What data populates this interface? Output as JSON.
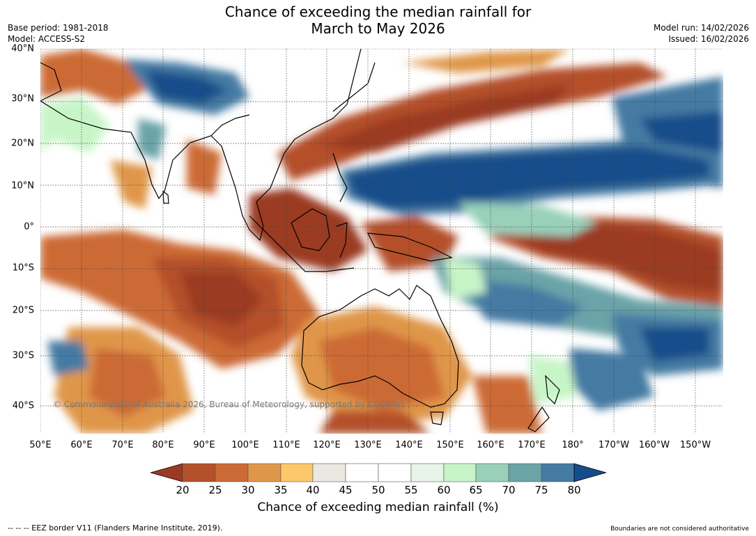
{
  "title_line1": "Chance of exceeding the median rainfall for",
  "title_line2": "March to May 2026",
  "meta_left": {
    "base_period": "Base period: 1981-2018",
    "model": "Model: ACCESS-S2"
  },
  "meta_right": {
    "model_run": "Model run: 14/02/2026",
    "issued": "Issued: 16/02/2026"
  },
  "copyright": "© Commonwealth of Australia 2026, Bureau of Meteorology, supported by COSPPac",
  "lon_ticks": [
    "50°E",
    "60°E",
    "70°E",
    "80°E",
    "90°E",
    "100°E",
    "110°E",
    "120°E",
    "130°E",
    "140°E",
    "150°E",
    "160°E",
    "170°E",
    "180°",
    "170°W",
    "160°W",
    "150°W"
  ],
  "lat_ticks": [
    "40°N",
    "30°N",
    "20°N",
    "10°N",
    "0°",
    "10°S",
    "20°S",
    "30°S",
    "40°S"
  ],
  "colorbar": {
    "labels": [
      "20",
      "25",
      "30",
      "35",
      "40",
      "45",
      "50",
      "55",
      "60",
      "65",
      "70",
      "75",
      "80"
    ],
    "colors": [
      "#9b3a22",
      "#b4502a",
      "#cc6a35",
      "#e0964a",
      "#fcc86a",
      "#ebe8e2",
      "#ffffff",
      "#ffffff",
      "#e8f4e8",
      "#c8f5c8",
      "#98d0ba",
      "#6aa3a8",
      "#457aa3",
      "#154d8a"
    ],
    "title": "Chance of exceeding median rainfall (%)"
  },
  "footer_left": "--  --  -- EEZ border V11 (Flanders Marine Institute, 2019).",
  "footer_right": "Boundaries are not considered authoritative",
  "chart_data": {
    "type": "heatmap",
    "title": "Chance of exceeding the median rainfall for March to May 2026",
    "colorbar_label": "Chance of exceeding median rainfall (%)",
    "colorbar_range": [
      20,
      80
    ],
    "colorbar_step": 5,
    "lon_ticks": [
      "50°E",
      "60°E",
      "70°E",
      "80°E",
      "90°E",
      "100°E",
      "110°E",
      "120°E",
      "130°E",
      "140°E",
      "150°E",
      "160°E",
      "170°E",
      "180°",
      "170°W",
      "160°W",
      "150°W"
    ],
    "lat_ticks": [
      "40°N",
      "30°N",
      "20°N",
      "10°N",
      "0°",
      "10°S",
      "20°S",
      "30°S",
      "40°S"
    ],
    "grid": true
  }
}
